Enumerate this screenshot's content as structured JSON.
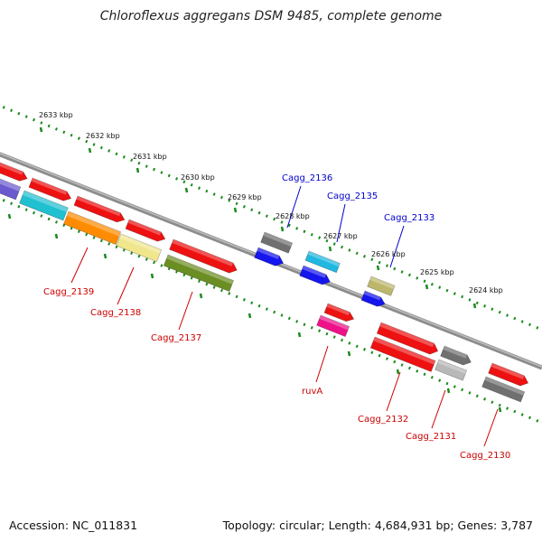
{
  "title": "Chloroflexus aggregans DSM 9485, complete genome",
  "accession": "Accession: NC_011831",
  "summary": "Topology: circular; Length: 4,684,931 bp; Genes: 3,787",
  "colors": {
    "backbone": "#8c8c8c",
    "ruler": "#1b8a1b",
    "label_top": "#0000cc",
    "label_bottom": "#cc0000"
  },
  "scale_labels": [
    "2633 kbp",
    "2632 kbp",
    "2631 kbp",
    "2630 kbp",
    "2629 kbp",
    "2628 kbp",
    "2627 kbp",
    "2626 kbp",
    "2625 kbp",
    "2624 kbp"
  ],
  "gene_labels_top": [
    "Cagg_2136",
    "Cagg_2135",
    "Cagg_2133"
  ],
  "gene_labels_bottom": [
    "Cagg_2139",
    "Cagg_2138",
    "Cagg_2137",
    "ruvA",
    "Cagg_2132",
    "Cagg_2131",
    "Cagg_2130"
  ],
  "features": [
    {
      "color": "#ee1111"
    },
    {
      "color": "#ee1111"
    },
    {
      "color": "#ee1111"
    },
    {
      "color": "#ee1111"
    },
    {
      "color": "#ee1111"
    },
    {
      "color": "#6a5acd"
    },
    {
      "color": "#20c0d0"
    },
    {
      "color": "#ff8c00"
    },
    {
      "color": "#f0e68c"
    },
    {
      "color": "#6b8e23"
    },
    {
      "color": "#707070"
    },
    {
      "color": "#1515ee"
    },
    {
      "color": "#20b8e0"
    },
    {
      "color": "#1515ee"
    },
    {
      "color": "#bdb76b"
    },
    {
      "color": "#1515ee"
    },
    {
      "color": "#ee1111"
    },
    {
      "color": "#ee1188"
    },
    {
      "color": "#ee1111"
    },
    {
      "color": "#707070"
    },
    {
      "color": "#ee1111"
    },
    {
      "color": "#b8b8b8"
    },
    {
      "color": "#ee1111"
    },
    {
      "color": "#707070"
    }
  ]
}
